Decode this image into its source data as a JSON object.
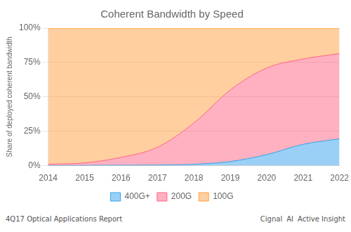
{
  "chart_data": {
    "type": "area",
    "title": "Coherent Bandwidth by Speed",
    "y_label": "Share of deployed coherent bandwidth",
    "x": [
      2014,
      2015,
      2016,
      2017,
      2018,
      2019,
      2020,
      2021,
      2022
    ],
    "series": [
      {
        "name": "400G+",
        "values": [
          0.0,
          0.002,
          0.003,
          0.004,
          0.01,
          0.03,
          0.08,
          0.155,
          0.195
        ]
      },
      {
        "name": "200G",
        "values": [
          0.01,
          0.018,
          0.057,
          0.13,
          0.3,
          0.52,
          0.63,
          0.62,
          0.62
        ]
      },
      {
        "name": "100G",
        "values": [
          0.99,
          0.98,
          0.94,
          0.866,
          0.69,
          0.45,
          0.29,
          0.225,
          0.185
        ]
      }
    ],
    "stacked": true,
    "xlim": [
      2014,
      2022
    ],
    "xticks": [
      2014,
      2015,
      2016,
      2017,
      2018,
      2019,
      2020,
      2021,
      2022
    ],
    "ylim": [
      0,
      1
    ],
    "yticks": [
      {
        "value": 0,
        "label": "0%"
      },
      {
        "value": 0.25,
        "label": "25%"
      },
      {
        "value": 0.5,
        "label": "50%"
      },
      {
        "value": 0.75,
        "label": "75%"
      },
      {
        "value": 1,
        "label": "100%"
      }
    ],
    "grid": true,
    "legend": "bottom",
    "annotations": [
      "4Q17 Optical Applications Report",
      "Cignal",
      "AI",
      "Active Insight"
    ]
  }
}
